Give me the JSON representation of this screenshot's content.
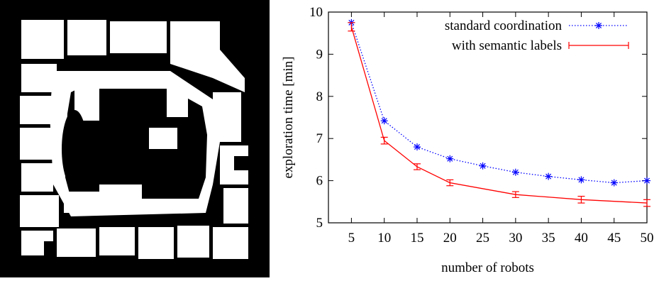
{
  "map_image": {
    "description_name": "occupancy-grid-map",
    "background_color": "#000000",
    "free_space_color": "#ffffff"
  },
  "chart_data": {
    "type": "line",
    "xlabel": "number of robots",
    "ylabel": "exploration time [min]",
    "xlim": [
      1.5,
      50
    ],
    "ylim": [
      5,
      10
    ],
    "xticks": [
      5,
      10,
      15,
      20,
      25,
      30,
      35,
      40,
      45,
      50
    ],
    "yticks": [
      5,
      6,
      7,
      8,
      9,
      10
    ],
    "grid": false,
    "legend_position": "top-right",
    "series": [
      {
        "name": "standard coordination",
        "color": "#0000ff",
        "line_style": "dotted",
        "marker": "asterisk",
        "x": [
          5,
          10,
          15,
          20,
          25,
          30,
          35,
          40,
          45,
          50
        ],
        "y": [
          9.75,
          7.42,
          6.8,
          6.52,
          6.35,
          6.2,
          6.1,
          6.02,
          5.95,
          6.0
        ]
      },
      {
        "name": "with semantic labels",
        "color": "#ff0000",
        "line_style": "solid",
        "marker": "errorbar",
        "x": [
          5,
          10,
          15,
          20,
          30,
          40,
          50
        ],
        "y": [
          9.65,
          6.95,
          6.33,
          5.95,
          5.67,
          5.55,
          5.47
        ],
        "error": [
          0.1,
          0.08,
          0.07,
          0.07,
          0.07,
          0.08,
          0.08
        ]
      }
    ]
  }
}
